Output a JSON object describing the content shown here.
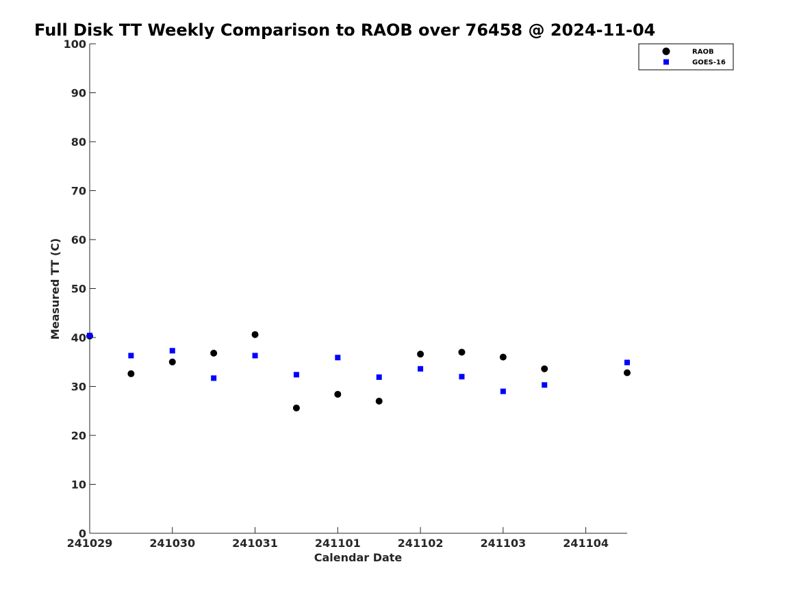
{
  "chart_data": {
    "type": "scatter",
    "title": "Full Disk TT Weekly Comparison to RAOB over 76458 @ 2024-11-04",
    "xlabel": "Calendar Date",
    "ylabel": "Measured TT (C)",
    "x_ticks": [
      "241029",
      "241030",
      "241031",
      "241101",
      "241102",
      "241103",
      "241104"
    ],
    "xlim": [
      0,
      6.5
    ],
    "ylim": [
      0,
      100
    ],
    "y_ticks": [
      0,
      10,
      20,
      30,
      40,
      50,
      60,
      70,
      80,
      90,
      100
    ],
    "grid": false,
    "legend_position": "top-right",
    "series": [
      {
        "name": "RAOB",
        "marker": "circle",
        "color": "#000000",
        "x": [
          0,
          0.5,
          1,
          1.5,
          2,
          2.5,
          3,
          3.5,
          4,
          4.5,
          5,
          5.5,
          6.5
        ],
        "y": [
          40.3,
          32.6,
          35.0,
          36.8,
          40.6,
          25.6,
          28.4,
          27.0,
          36.6,
          37.0,
          36.0,
          33.6,
          32.8
        ]
      },
      {
        "name": "GOES-16",
        "marker": "square",
        "color": "#0000ff",
        "x": [
          0,
          0.5,
          1,
          1.5,
          2,
          2.5,
          3,
          3.5,
          4,
          4.5,
          5,
          5.5,
          6.5
        ],
        "y": [
          40.4,
          36.3,
          37.3,
          31.7,
          36.3,
          32.4,
          35.9,
          31.9,
          33.6,
          32.0,
          29.0,
          30.3,
          34.9
        ]
      }
    ]
  }
}
